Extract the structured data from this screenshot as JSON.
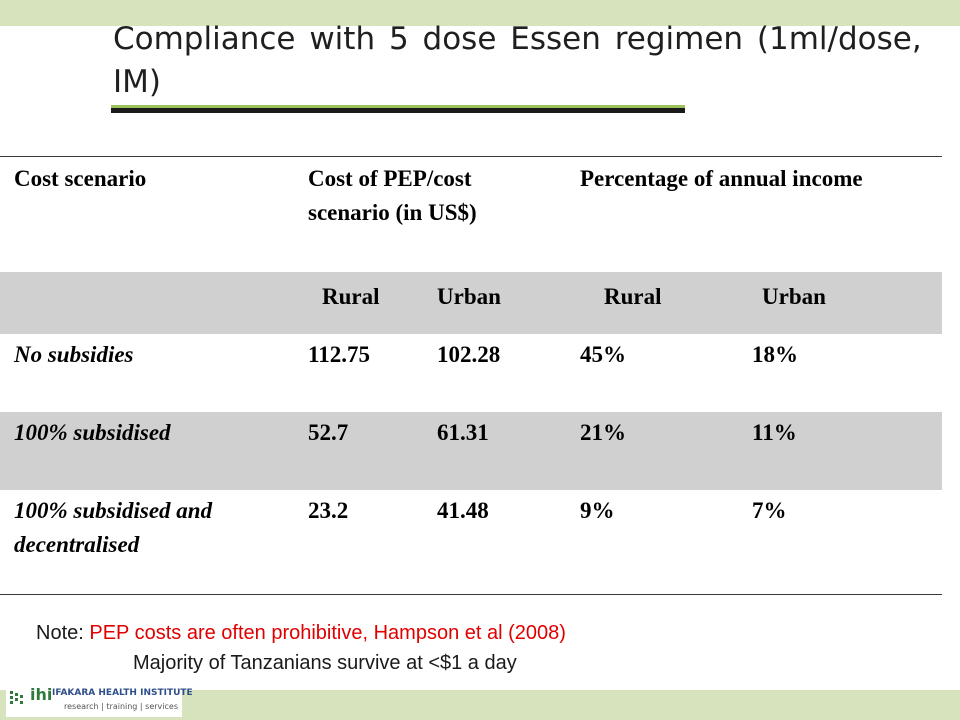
{
  "title": "Compliance with 5 dose Essen regimen (1ml/dose, IM)",
  "colors": {
    "accent_band": "#d6e3bc",
    "title_rule_accent": "#9bc25b",
    "row_grey": "#d0d0d0",
    "note_red": "#e00000"
  },
  "table": {
    "headers": {
      "scenario": "Cost scenario",
      "cost": "Cost of PEP/cost scenario (in US$)",
      "percentage": "Percentage of annual income"
    },
    "subheaders": [
      "Rural",
      "Urban",
      "Rural",
      "Urban"
    ],
    "rows": [
      {
        "scenario": "No subsidies",
        "cost_rural": "112.75",
        "cost_urban": "102.28",
        "pct_rural": "45%",
        "pct_urban": "18%"
      },
      {
        "scenario": "100% subsidised",
        "cost_rural": "52.7",
        "cost_urban": "61.31",
        "pct_rural": "21%",
        "pct_urban": "11%"
      },
      {
        "scenario": "100% subsidised and decentralised",
        "cost_rural": "23.2",
        "cost_urban": "41.48",
        "pct_rural": "9%",
        "pct_urban": "7%"
      }
    ]
  },
  "note": {
    "label": "Note:",
    "red_text": "PEP costs are often prohibitive, Hampson et al (2008)",
    "second_line": "Majority of Tanzanians survive at <$1 a day"
  },
  "footer": {
    "logo_letters": "ihi",
    "logo_name": "IFAKARA HEALTH INSTITUTE",
    "logo_tagline": "research | training | services"
  }
}
